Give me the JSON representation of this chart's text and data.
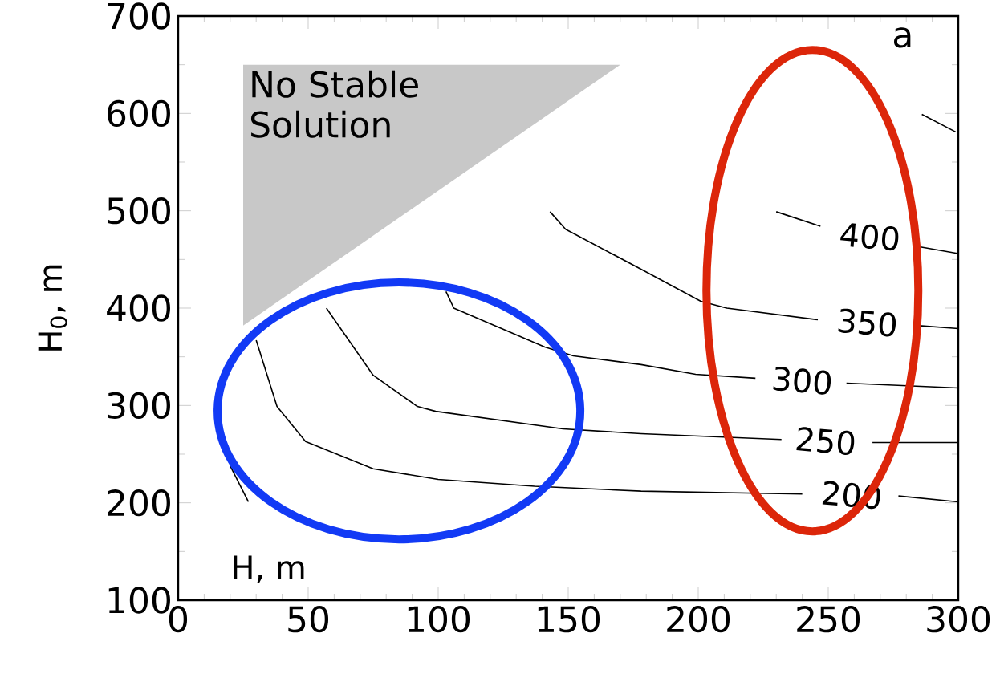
{
  "chart_data": {
    "type": "line",
    "xlabel": "H, m",
    "ylabel": "H$_{0}$, m",
    "marker": "none",
    "xlim": [
      0,
      300
    ],
    "ylim": [
      100,
      700
    ],
    "xticks": [
      0,
      50,
      100,
      150,
      200,
      250,
      300
    ],
    "yticks": [
      100,
      200,
      300,
      400,
      500,
      600,
      700
    ],
    "annotations": [
      "a"
    ],
    "series": [
      {
        "type": "area",
        "name": "No Stable Solution",
        "color": "#c8c8c8",
        "x": [
          25,
          170,
          25
        ],
        "values": [
          650,
          650,
          382
        ]
      },
      {
        "name": "200",
        "color": "#000000",
        "x": [
          30,
          38,
          49,
          75,
          100,
          137,
          178,
          240,
          259,
          277,
          300
        ],
        "values": [
          367,
          299,
          263,
          235,
          224,
          217,
          212,
          209,
          null,
          207,
          201
        ]
      },
      {
        "name": "250",
        "color": "#000000",
        "x": [
          57,
          75,
          92,
          99,
          148,
          178,
          232,
          249,
          267,
          300
        ],
        "values": [
          400,
          331,
          299,
          294,
          276,
          271,
          265,
          null,
          262,
          262
        ]
      },
      {
        "name": "300",
        "color": "#000000",
        "x": [
          103,
          106,
          141,
          152,
          178,
          199,
          222,
          240,
          257,
          300
        ],
        "values": [
          417,
          400,
          360,
          351,
          342,
          332,
          328,
          null,
          323,
          318
        ]
      },
      {
        "name": "350",
        "color": "#000000",
        "x": [
          143,
          149,
          178,
          201,
          211,
          246,
          265,
          285,
          300
        ],
        "values": [
          499,
          481,
          440,
          407,
          400,
          388,
          null,
          382,
          379
        ]
      },
      {
        "name": "400",
        "color": "#000000",
        "x": [
          230,
          247,
          266,
          285,
          300
        ],
        "values": [
          499,
          484,
          null,
          463,
          456
        ]
      },
      {
        "color": "#000000",
        "x": [
          20,
          27
        ],
        "values": [
          238,
          201
        ]
      },
      {
        "color": "#000000",
        "x": [
          286,
          299
        ],
        "values": [
          599,
          581
        ]
      }
    ]
  }
}
